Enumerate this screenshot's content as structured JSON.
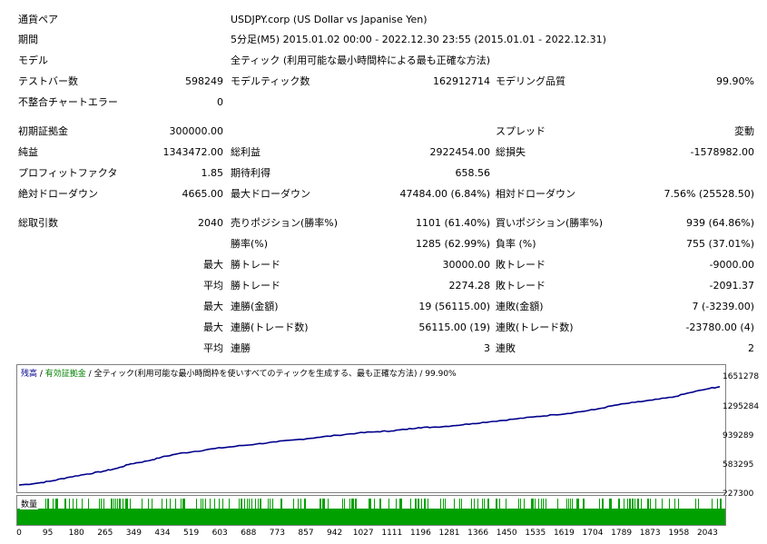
{
  "info": {
    "symbol_label": "通貨ペア",
    "symbol_value": "USDJPY.corp (US Dollar vs Japanise Yen)",
    "period_label": "期間",
    "period_value": "5分足(M5) 2015.01.02 00:00 - 2022.12.30 23:55 (2015.01.01 - 2022.12.31)",
    "model_label": "モデル",
    "model_value": "全ティック (利用可能な最小時間枠による最も正確な方法)",
    "bars_label": "テストバー数",
    "bars_value": "598249",
    "ticks_label": "モデルティック数",
    "ticks_value": "162912714",
    "quality_label": "モデリング品質",
    "quality_value": "99.90%",
    "errors_label": "不整合チャートエラー",
    "errors_value": "0"
  },
  "results": {
    "deposit_label": "初期証拠金",
    "deposit_value": "300000.00",
    "spread_label": "スプレッド",
    "spread_value": "変動",
    "net_label": "純益",
    "net_value": "1343472.00",
    "gross_profit_label": "総利益",
    "gross_profit_value": "2922454.00",
    "gross_loss_label": "総損失",
    "gross_loss_value": "-1578982.00",
    "pf_label": "プロフィットファクタ",
    "pf_value": "1.85",
    "payoff_label": "期待利得",
    "payoff_value": "658.56",
    "abs_dd_label": "絶対ドローダウン",
    "abs_dd_value": "4665.00",
    "max_dd_label": "最大ドローダウン",
    "max_dd_value": "47484.00 (6.84%)",
    "rel_dd_label": "相対ドローダウン",
    "rel_dd_value": "7.56% (25528.50)",
    "total_trades_label": "総取引数",
    "total_trades_value": "2040",
    "short_label": "売りポジション(勝率%)",
    "short_value": "1101 (61.40%)",
    "long_label": "買いポジション(勝率%)",
    "long_value": "939 (64.86%)",
    "win_label": "勝率(%)",
    "win_value": "1285 (62.99%)",
    "loss_label": "負率 (%)",
    "loss_value": "755 (37.01%)",
    "max_word": "最大",
    "avg_word": "平均",
    "largest_win_label": "勝トレード",
    "largest_win_value": "30000.00",
    "largest_loss_label": "敗トレード",
    "largest_loss_value": "-9000.00",
    "avg_win_label": "勝トレード",
    "avg_win_value": "2274.28",
    "avg_loss_label": "敗トレード",
    "avg_loss_value": "-2091.37",
    "max_consec_wins_label": "連勝(金額)",
    "max_consec_wins_value": "19 (56115.00)",
    "max_consec_losses_label": "連敗(金額)",
    "max_consec_losses_value": "7 (-3239.00)",
    "max_consec_profit_label": "連勝(トレード数)",
    "max_consec_profit_value": "56115.00 (19)",
    "max_consec_loss_label": "連敗(トレード数)",
    "max_consec_loss_value": "-23780.00 (4)",
    "avg_consec_wins_label": "連勝",
    "avg_consec_wins_value": "3",
    "avg_consec_losses_label": "連敗",
    "avg_consec_losses_value": "2"
  },
  "chart_data": {
    "type": "line",
    "legend": {
      "balance": "残高",
      "sep1": " / ",
      "equity": "有効証拠金",
      "sep2": " / ",
      "model": "全ティック(利用可能な最小時間枠を使いすべてのティックを生成する、最も正確な方法)",
      "sep3": " / ",
      "quality": "99.90%"
    },
    "colors": {
      "balance": "#00008b",
      "equity": "#008000",
      "volume": "#00a000"
    },
    "volume_label": "数量",
    "y_ticks": [
      "1651278",
      "1295284",
      "939289",
      "583295",
      "227300"
    ],
    "x_ticks": [
      "0",
      "95",
      "180",
      "265",
      "349",
      "434",
      "519",
      "603",
      "688",
      "773",
      "857",
      "942",
      "1027",
      "1111",
      "1196",
      "1281",
      "1366",
      "1450",
      "1535",
      "1619",
      "1704",
      "1789",
      "1873",
      "1958",
      "2043"
    ],
    "xlim": [
      0,
      2070
    ],
    "ylim": [
      227300,
      1740000
    ],
    "series": [
      {
        "x": [
          0,
          60,
          100,
          150,
          200,
          250,
          290,
          330,
          380,
          420,
          470,
          520,
          580,
          640,
          700,
          760,
          820,
          880,
          940,
          1000,
          1060,
          1100,
          1140,
          1180,
          1220,
          1280,
          1340,
          1400,
          1460,
          1520,
          1580,
          1640,
          1700,
          1760,
          1820,
          1870,
          1930,
          1980,
          2040,
          2070
        ],
        "values": [
          300000,
          330000,
          360000,
          410000,
          450000,
          490000,
          530000,
          590000,
          630000,
          680000,
          730000,
          760000,
          800000,
          830000,
          860000,
          890000,
          920000,
          950000,
          980000,
          1010000,
          1030000,
          1040000,
          1060000,
          1085000,
          1090000,
          1110000,
          1140000,
          1170000,
          1200000,
          1230000,
          1260000,
          1290000,
          1330000,
          1390000,
          1430000,
          1460000,
          1500000,
          1560000,
          1620000,
          1643000
        ]
      }
    ]
  }
}
